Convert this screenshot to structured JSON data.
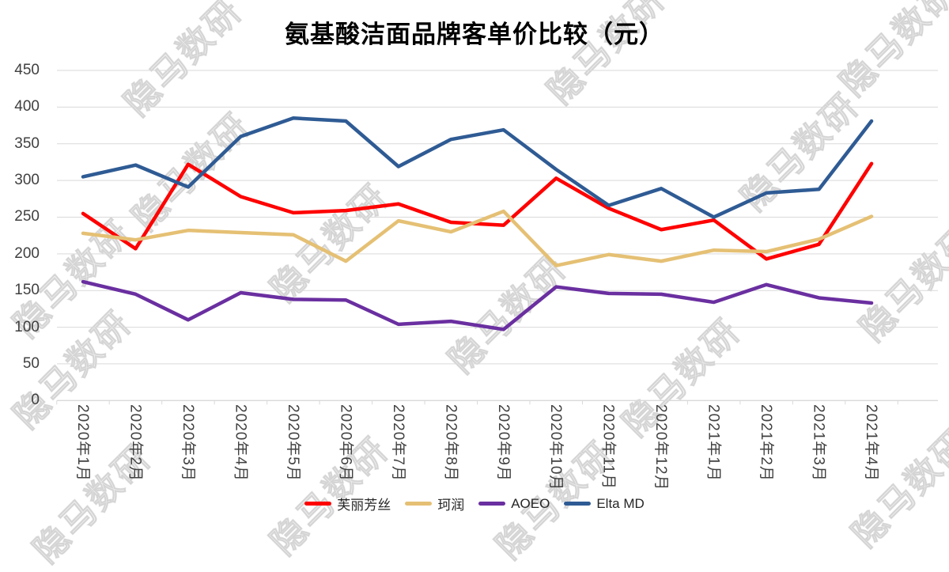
{
  "title": "氨基酸洁面品牌客单价比较（元）",
  "watermark": {
    "text": "隐马数研"
  },
  "axis": {
    "y_ticks": [
      0,
      50,
      100,
      150,
      200,
      250,
      300,
      350,
      400,
      450
    ],
    "grid_color": "#d9d9d9",
    "label_color": "#404040"
  },
  "chart_data": {
    "type": "line",
    "title": "氨基酸洁面品牌客单价比较（元）",
    "xlabel": "",
    "ylabel": "",
    "ylim": [
      0,
      450
    ],
    "ytick_step": 50,
    "grid": true,
    "legend_position": "bottom",
    "categories": [
      "2020年1月",
      "2020年2月",
      "2020年3月",
      "2020年4月",
      "2020年5月",
      "2020年6月",
      "2020年7月",
      "2020年8月",
      "2020年9月",
      "2020年10月",
      "2020年11月",
      "2020年12月",
      "2021年1月",
      "2021年2月",
      "2021年3月",
      "2021年4月"
    ],
    "series": [
      {
        "name": "芙丽芳丝",
        "color": "#FE0000",
        "values": [
          255,
          207,
          322,
          278,
          256,
          259,
          268,
          243,
          239,
          303,
          262,
          233,
          246,
          193,
          213,
          323
        ]
      },
      {
        "name": "珂润",
        "color": "#E5C074",
        "values": [
          228,
          219,
          232,
          229,
          226,
          190,
          245,
          230,
          258,
          184,
          199,
          190,
          205,
          203,
          220,
          251
        ]
      },
      {
        "name": "AOEO",
        "color": "#6A2FA0",
        "values": [
          162,
          145,
          110,
          147,
          138,
          137,
          104,
          108,
          97,
          155,
          146,
          145,
          134,
          158,
          140,
          133
        ]
      },
      {
        "name": "Elta MD",
        "color": "#2F5B94",
        "values": [
          305,
          321,
          291,
          360,
          385,
          381,
          319,
          356,
          369,
          315,
          266,
          289,
          250,
          283,
          288,
          381
        ]
      }
    ]
  },
  "legend": {
    "items": [
      "芙丽芳丝",
      "珂润",
      "AOEO",
      "Elta MD"
    ]
  }
}
